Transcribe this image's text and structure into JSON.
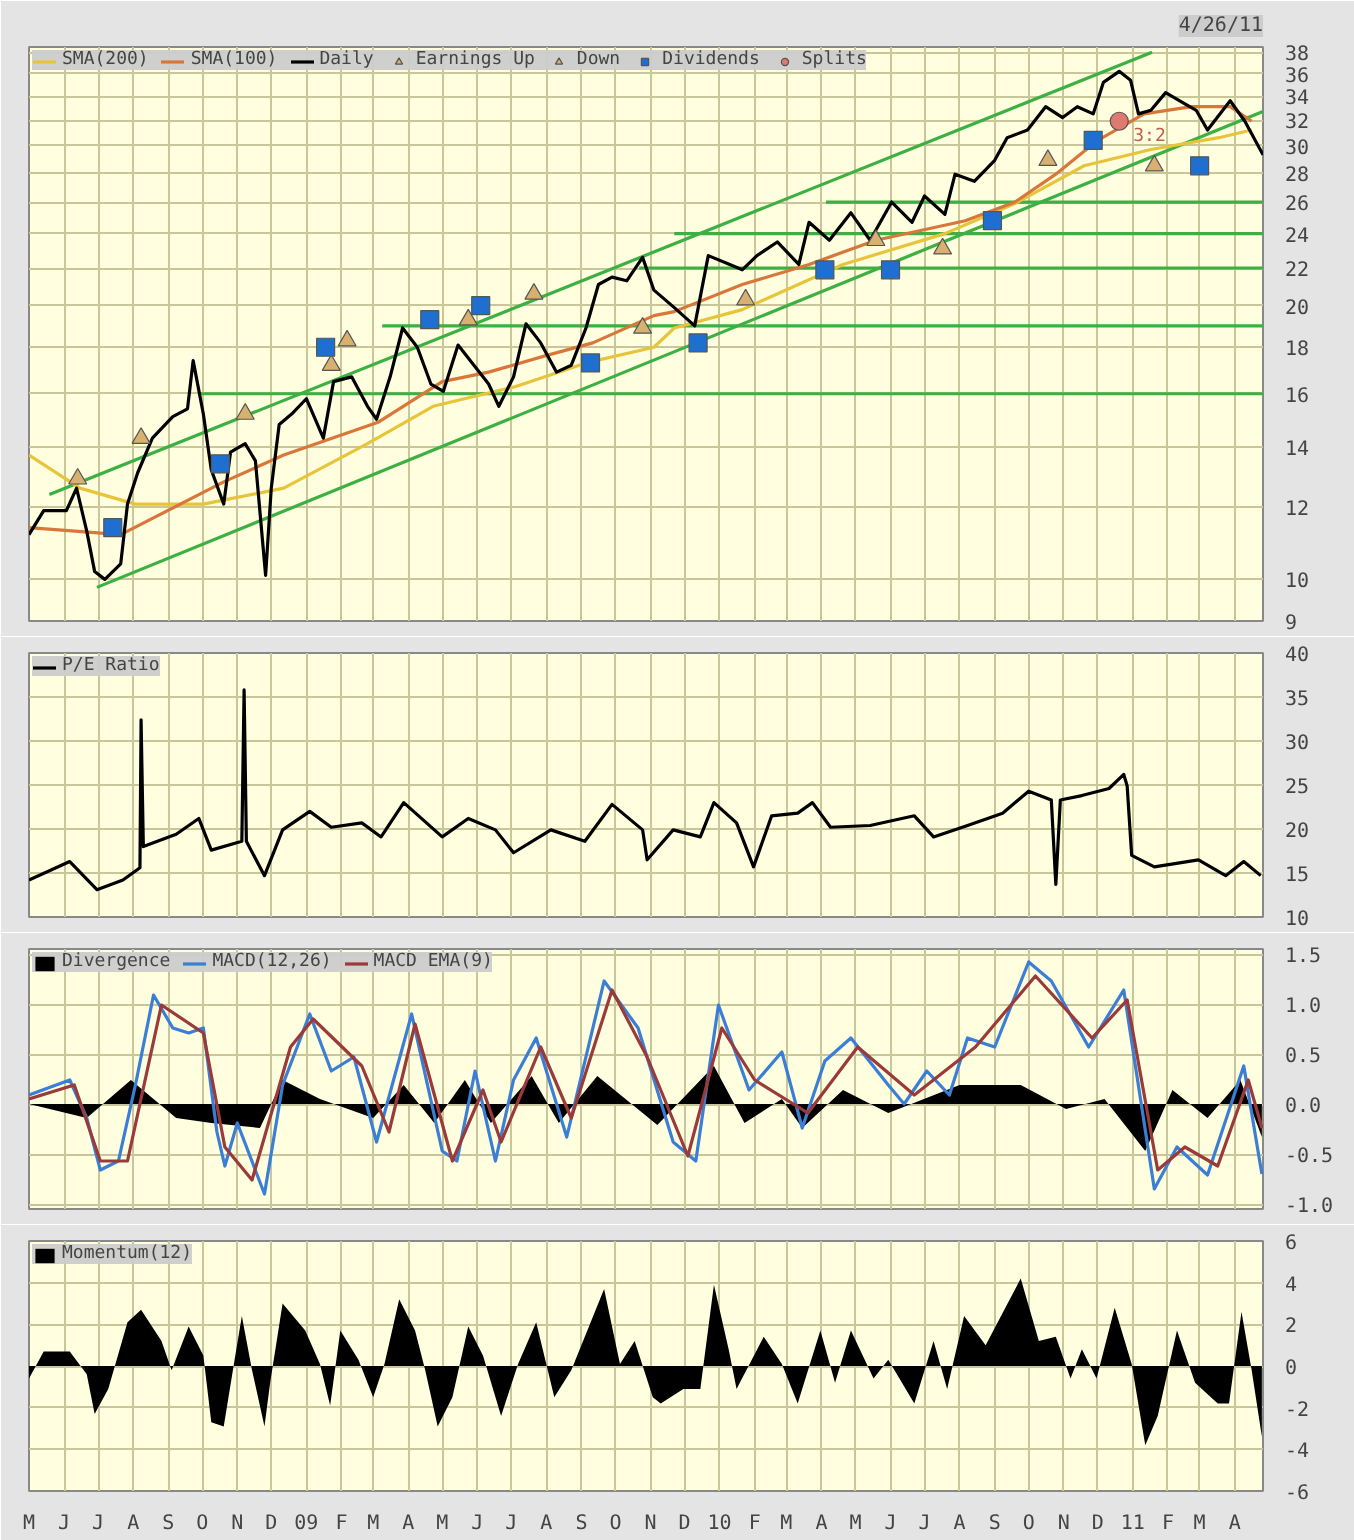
{
  "chart_data": [
    {
      "type": "line",
      "subtitle": "4/26/11",
      "log": true,
      "grid": true,
      "legend": "top",
      "tick_labels": "y",
      "xlim": [
        "2008-05-01",
        "2011-04-26"
      ],
      "ylim": [
        9,
        38.5
      ],
      "yticks": [
        9,
        10,
        12,
        14,
        16,
        18,
        20,
        22,
        24,
        26,
        28,
        30,
        32,
        34,
        36,
        38
      ],
      "xticks": [
        {
          "value": "2008-05-01",
          "label": null
        },
        {
          "value": "2008-06-01",
          "label": null
        },
        {
          "value": "2008-07-01",
          "label": null
        },
        {
          "value": "2008-08-01",
          "label": null
        },
        {
          "value": "2008-09-01",
          "label": null
        },
        {
          "value": "2008-10-01",
          "label": null
        },
        {
          "value": "2008-11-01",
          "label": null
        },
        {
          "value": "2008-12-01",
          "label": null
        },
        {
          "value": "2009-01-01",
          "label": null
        },
        {
          "value": "2009-02-01",
          "label": null
        },
        {
          "value": "2009-03-01",
          "label": null
        },
        {
          "value": "2009-04-01",
          "label": null
        },
        {
          "value": "2009-05-01",
          "label": null
        },
        {
          "value": "2009-06-01",
          "label": null
        },
        {
          "value": "2009-07-01",
          "label": null
        },
        {
          "value": "2009-08-01",
          "label": null
        },
        {
          "value": "2009-09-01",
          "label": null
        },
        {
          "value": "2009-10-01",
          "label": null
        },
        {
          "value": "2009-11-01",
          "label": null
        },
        {
          "value": "2009-12-01",
          "label": null
        },
        {
          "value": "2010-01-01",
          "label": null
        },
        {
          "value": "2010-02-01",
          "label": null
        },
        {
          "value": "2010-03-01",
          "label": null
        },
        {
          "value": "2010-04-01",
          "label": null
        },
        {
          "value": "2010-05-01",
          "label": null
        },
        {
          "value": "2010-06-01",
          "label": null
        },
        {
          "value": "2010-07-01",
          "label": null
        },
        {
          "value": "2010-08-01",
          "label": null
        },
        {
          "value": "2010-09-01",
          "label": null
        },
        {
          "value": "2010-10-01",
          "label": null
        },
        {
          "value": "2010-11-01",
          "label": null
        },
        {
          "value": "2010-12-01",
          "label": null
        },
        {
          "value": "2011-01-01",
          "label": null
        },
        {
          "value": "2011-02-01",
          "label": null
        },
        {
          "value": "2011-03-01",
          "label": null
        },
        {
          "value": "2011-04-01",
          "label": null
        }
      ],
      "annotations": [
        {
          "text": "3:2",
          "x": "2010-12-20",
          "y": 31.9
        }
      ],
      "series": [
        {
          "type": "line",
          "color": "#3cb043",
          "x": [
            "2008-06-30",
            "2011-04-26"
          ],
          "values": [
            9.8,
            32.7
          ]
        },
        {
          "type": "line",
          "color": "#3cb043",
          "x": [
            "2008-05-19",
            "2011-01-18"
          ],
          "values": [
            12.4,
            38
          ]
        },
        {
          "type": "line",
          "color": "#3cb043",
          "x": [
            "2008-09-28",
            "2011-04-26"
          ],
          "values": [
            16,
            16
          ]
        },
        {
          "type": "line",
          "color": "#3cb043",
          "x": [
            "2009-03-09",
            "2011-04-26"
          ],
          "values": [
            19,
            19
          ]
        },
        {
          "type": "line",
          "color": "#3cb043",
          "x": [
            "2009-10-22",
            "2011-04-26"
          ],
          "values": [
            22,
            22
          ]
        },
        {
          "type": "line",
          "color": "#3cb043",
          "x": [
            "2009-11-22",
            "2011-04-26"
          ],
          "values": [
            24,
            24
          ]
        },
        {
          "type": "line",
          "color": "#3cb043",
          "x": [
            "2010-04-05",
            "2011-04-26"
          ],
          "values": [
            26,
            26
          ]
        },
        {
          "type": "line",
          "name": "SMA(200)",
          "color": "#e8c43a",
          "x": [
            "2008-05-01",
            "2008-06-15",
            "2008-08-03",
            "2008-10-02",
            "2008-12-12",
            "2009-02-24",
            "2009-04-23",
            "2009-07-05",
            "2009-09-05",
            "2009-11-04",
            "2009-11-22",
            "2010-01-21",
            "2010-04-20",
            "2010-07-19",
            "2010-09-19",
            "2010-11-19",
            "2011-01-17",
            "2011-03-18",
            "2011-04-16"
          ],
          "values": [
            13.7,
            12.6,
            12.1,
            12.1,
            12.6,
            14.1,
            15.5,
            16.3,
            17.3,
            18.0,
            18.9,
            19.8,
            22.2,
            24.0,
            25.9,
            28.5,
            29.7,
            30.6,
            31.2
          ]
        },
        {
          "type": "line",
          "name": "SMA(100)",
          "color": "#d9773a",
          "x": [
            "2008-05-01",
            "2008-07-21",
            "2008-10-20",
            "2008-12-12",
            "2009-03-06",
            "2009-05-01",
            "2009-06-11",
            "2009-07-30",
            "2009-09-11",
            "2009-11-04",
            "2009-11-22",
            "2010-01-21",
            "2010-03-21",
            "2010-05-19",
            "2010-08-06",
            "2010-09-19",
            "2010-10-25",
            "2010-12-01",
            "2011-01-11",
            "2011-02-22",
            "2011-03-28",
            "2011-04-16"
          ],
          "values": [
            11.4,
            11.2,
            12.8,
            13.7,
            14.9,
            16.5,
            16.9,
            17.6,
            18.2,
            19.5,
            19.7,
            21.1,
            22.2,
            23.6,
            24.8,
            26.0,
            27.9,
            30.4,
            32.5,
            33.1,
            33.1,
            31.9
          ]
        },
        {
          "type": "line",
          "name": "Daily",
          "color": "#000000",
          "x": [
            "2008-05-01",
            "2008-05-14",
            "2008-06-03",
            "2008-06-12",
            "2008-06-21",
            "2008-06-28",
            "2008-07-07",
            "2008-07-21",
            "2008-07-27",
            "2008-08-05",
            "2008-08-18",
            "2008-09-05",
            "2008-09-18",
            "2008-09-23",
            "2008-10-02",
            "2008-10-09",
            "2008-10-20",
            "2008-10-26",
            "2008-11-08",
            "2008-11-17",
            "2008-11-26",
            "2008-12-01",
            "2008-12-08",
            "2008-12-19",
            "2009-01-01",
            "2009-01-16",
            "2009-01-25",
            "2009-02-10",
            "2009-02-24",
            "2009-03-04",
            "2009-03-16",
            "2009-03-27",
            "2009-04-09",
            "2009-04-21",
            "2009-05-02",
            "2009-05-15",
            "2009-05-29",
            "2009-06-11",
            "2009-06-20",
            "2009-07-03",
            "2009-07-14",
            "2009-07-27",
            "2009-08-10",
            "2009-08-23",
            "2009-09-05",
            "2009-09-16",
            "2009-09-28",
            "2009-10-11",
            "2009-10-25",
            "2009-11-04",
            "2009-11-22",
            "2009-12-10",
            "2009-12-22",
            "2010-01-10",
            "2010-01-21",
            "2010-02-03",
            "2010-02-21",
            "2010-03-12",
            "2010-03-21",
            "2010-04-08",
            "2010-04-27",
            "2010-05-14",
            "2010-06-02",
            "2010-06-20",
            "2010-07-01",
            "2010-07-19",
            "2010-07-28",
            "2010-08-14",
            "2010-09-01",
            "2010-09-12",
            "2010-09-30",
            "2010-10-16",
            "2010-10-31",
            "2010-11-13",
            "2010-11-27",
            "2010-12-06",
            "2010-12-20",
            "2010-12-30",
            "2011-01-06",
            "2011-01-17",
            "2011-01-30",
            "2011-02-13",
            "2011-02-26",
            "2011-03-08",
            "2011-03-28",
            "2011-04-10",
            "2011-04-26"
          ],
          "values": [
            11.2,
            11.9,
            11.9,
            12.6,
            11.3,
            10.2,
            10.0,
            10.4,
            12.1,
            13.1,
            14.3,
            15.1,
            15.4,
            17.4,
            15.2,
            13.2,
            12.1,
            13.8,
            14.1,
            13.5,
            10.1,
            12.6,
            14.8,
            15.2,
            15.8,
            14.3,
            16.5,
            16.7,
            15.5,
            15.0,
            16.7,
            18.9,
            18.0,
            16.4,
            16.1,
            18.1,
            17.2,
            16.4,
            15.5,
            16.7,
            19.1,
            18.2,
            16.9,
            17.2,
            18.9,
            21.1,
            21.5,
            21.3,
            22.6,
            20.8,
            19.9,
            19.0,
            22.7,
            22.2,
            21.9,
            22.7,
            23.5,
            22.2,
            24.7,
            23.6,
            25.3,
            23.6,
            26.0,
            24.7,
            26.4,
            25.2,
            27.9,
            27.4,
            28.9,
            30.6,
            31.2,
            33.1,
            32.2,
            33.1,
            32.5,
            35.2,
            36.2,
            35.4,
            32.5,
            32.8,
            34.3,
            33.5,
            32.8,
            31.2,
            33.6,
            31.9,
            29.3
          ]
        },
        {
          "type": "scatter",
          "name": "Earnings Up",
          "marker": "triangle",
          "color": "#d8b070",
          "x": [
            "2008-06-13",
            "2008-08-08",
            "2008-11-08",
            "2009-02-06",
            "2009-05-24",
            "2009-07-21",
            "2009-10-25",
            "2010-01-24",
            "2010-05-19",
            "2010-07-17",
            "2010-10-18",
            "2011-01-20"
          ],
          "values": [
            12.9,
            14.3,
            15.2,
            18.3,
            19.3,
            20.6,
            18.9,
            20.3,
            23.6,
            23.1,
            28.9,
            28.5
          ]
        },
        {
          "type": "scatter",
          "name": "Down",
          "marker": "triangle",
          "color": "#d8b070",
          "x": [
            "2009-01-23"
          ],
          "values": [
            17.2
          ]
        },
        {
          "type": "scatter",
          "name": "Dividends",
          "marker": "square",
          "color": "#1f6fd0",
          "x": [
            "2008-07-14",
            "2008-10-17",
            "2009-01-18",
            "2009-04-20",
            "2009-06-04",
            "2009-09-09",
            "2009-12-13",
            "2010-04-04",
            "2010-06-01",
            "2010-08-30",
            "2010-11-27",
            "2011-03-01"
          ],
          "values": [
            11.4,
            13.4,
            18.0,
            19.3,
            20.0,
            17.3,
            18.2,
            21.9,
            21.9,
            24.8,
            30.4,
            28.5
          ]
        },
        {
          "type": "scatter",
          "name": "Splits",
          "marker": "circle",
          "color": "#e07a70",
          "x": [
            "2010-12-20"
          ],
          "values": [
            31.9
          ]
        }
      ]
    },
    {
      "type": "line",
      "grid": true,
      "legend": "top",
      "tick_labels": "y",
      "xlim": [
        "2008-05-01",
        "2011-04-26"
      ],
      "ylim": [
        10,
        40
      ],
      "yticks": [
        10,
        15,
        20,
        25,
        30,
        35,
        40
      ],
      "xticks": [
        {
          "value": "2008-05-01",
          "label": null
        },
        {
          "value": "2008-06-01",
          "label": null
        },
        {
          "value": "2008-07-01",
          "label": null
        },
        {
          "value": "2008-08-01",
          "label": null
        },
        {
          "value": "2008-09-01",
          "label": null
        },
        {
          "value": "2008-10-01",
          "label": null
        },
        {
          "value": "2008-11-01",
          "label": null
        },
        {
          "value": "2008-12-01",
          "label": null
        },
        {
          "value": "2009-01-01",
          "label": null
        },
        {
          "value": "2009-02-01",
          "label": null
        },
        {
          "value": "2009-03-01",
          "label": null
        },
        {
          "value": "2009-04-01",
          "label": null
        },
        {
          "value": "2009-05-01",
          "label": null
        },
        {
          "value": "2009-06-01",
          "label": null
        },
        {
          "value": "2009-07-01",
          "label": null
        },
        {
          "value": "2009-08-01",
          "label": null
        },
        {
          "value": "2009-09-01",
          "label": null
        },
        {
          "value": "2009-10-01",
          "label": null
        },
        {
          "value": "2009-11-01",
          "label": null
        },
        {
          "value": "2009-12-01",
          "label": null
        },
        {
          "value": "2010-01-01",
          "label": null
        },
        {
          "value": "2010-02-01",
          "label": null
        },
        {
          "value": "2010-03-01",
          "label": null
        },
        {
          "value": "2010-04-01",
          "label": null
        },
        {
          "value": "2010-05-01",
          "label": null
        },
        {
          "value": "2010-06-01",
          "label": null
        },
        {
          "value": "2010-07-01",
          "label": null
        },
        {
          "value": "2010-08-01",
          "label": null
        },
        {
          "value": "2010-09-01",
          "label": null
        },
        {
          "value": "2010-10-01",
          "label": null
        },
        {
          "value": "2010-11-01",
          "label": null
        },
        {
          "value": "2010-12-01",
          "label": null
        },
        {
          "value": "2011-01-01",
          "label": null
        },
        {
          "value": "2011-02-01",
          "label": null
        },
        {
          "value": "2011-03-01",
          "label": null
        },
        {
          "value": "2011-04-01",
          "label": null
        }
      ],
      "series": [
        {
          "name": "P/E Ratio",
          "color": "#000000",
          "x": [
            "2008-05-01",
            "2008-06-06",
            "2008-06-30",
            "2008-07-23",
            "2008-08-07",
            "2008-08-08",
            "2008-08-10",
            "2008-09-08",
            "2008-09-28",
            "2008-10-09",
            "2008-11-05",
            "2008-11-07",
            "2008-11-09",
            "2008-11-25",
            "2008-12-11",
            "2009-01-04",
            "2009-01-23",
            "2009-02-19",
            "2009-03-08",
            "2009-03-28",
            "2009-05-01",
            "2009-05-24",
            "2009-06-17",
            "2009-07-03",
            "2009-08-05",
            "2009-09-04",
            "2009-09-28",
            "2009-10-25",
            "2009-10-29",
            "2009-11-21",
            "2009-12-15",
            "2009-12-27",
            "2010-01-16",
            "2010-01-31",
            "2010-02-16",
            "2010-03-11",
            "2010-03-24",
            "2010-04-09",
            "2010-05-14",
            "2010-06-22",
            "2010-07-09",
            "2010-08-08",
            "2010-09-08",
            "2010-10-01",
            "2010-10-21",
            "2010-10-25",
            "2010-10-29",
            "2010-11-17",
            "2010-12-11",
            "2010-12-24",
            "2010-12-27",
            "2010-12-31",
            "2011-01-20",
            "2011-02-28",
            "2011-03-24",
            "2011-04-09",
            "2011-04-24"
          ],
          "values": [
            14.2,
            16.3,
            13.1,
            14.2,
            15.6,
            32.4,
            18.0,
            19.4,
            21.2,
            17.6,
            18.6,
            35.8,
            18.6,
            14.7,
            19.9,
            22.0,
            20.2,
            20.7,
            19.1,
            23.0,
            19.1,
            21.2,
            19.9,
            17.3,
            19.9,
            18.6,
            22.8,
            19.9,
            16.5,
            19.9,
            19.1,
            23.0,
            20.7,
            15.7,
            21.5,
            21.8,
            23.0,
            20.2,
            20.4,
            21.5,
            19.1,
            20.4,
            21.8,
            24.3,
            23.3,
            13.7,
            23.3,
            23.8,
            24.6,
            26.2,
            24.9,
            17.0,
            15.7,
            16.5,
            14.7,
            16.3,
            14.7
          ]
        }
      ]
    },
    {
      "type": "line",
      "grid": true,
      "legend": "top",
      "tick_labels": "y",
      "xlim": [
        "2008-05-01",
        "2011-04-26"
      ],
      "ylim": [
        -1.05,
        1.55
      ],
      "yticks": [
        {
          "value": -1,
          "label": "-1.0"
        },
        -0.5,
        {
          "value": 0,
          "label": "0.0"
        },
        0.5,
        {
          "value": 1,
          "label": "1.0"
        },
        1.5
      ],
      "xticks": [
        {
          "value": "2008-05-01",
          "label": null
        },
        {
          "value": "2008-06-01",
          "label": null
        },
        {
          "value": "2008-07-01",
          "label": null
        },
        {
          "value": "2008-08-01",
          "label": null
        },
        {
          "value": "2008-09-01",
          "label": null
        },
        {
          "value": "2008-10-01",
          "label": null
        },
        {
          "value": "2008-11-01",
          "label": null
        },
        {
          "value": "2008-12-01",
          "label": null
        },
        {
          "value": "2009-01-01",
          "label": null
        },
        {
          "value": "2009-02-01",
          "label": null
        },
        {
          "value": "2009-03-01",
          "label": null
        },
        {
          "value": "2009-04-01",
          "label": null
        },
        {
          "value": "2009-05-01",
          "label": null
        },
        {
          "value": "2009-06-01",
          "label": null
        },
        {
          "value": "2009-07-01",
          "label": null
        },
        {
          "value": "2009-08-01",
          "label": null
        },
        {
          "value": "2009-09-01",
          "label": null
        },
        {
          "value": "2009-10-01",
          "label": null
        },
        {
          "value": "2009-11-01",
          "label": null
        },
        {
          "value": "2009-12-01",
          "label": null
        },
        {
          "value": "2010-01-01",
          "label": null
        },
        {
          "value": "2010-02-01",
          "label": null
        },
        {
          "value": "2010-03-01",
          "label": null
        },
        {
          "value": "2010-04-01",
          "label": null
        },
        {
          "value": "2010-05-01",
          "label": null
        },
        {
          "value": "2010-06-01",
          "label": null
        },
        {
          "value": "2010-07-01",
          "label": null
        },
        {
          "value": "2010-08-01",
          "label": null
        },
        {
          "value": "2010-09-01",
          "label": null
        },
        {
          "value": "2010-10-01",
          "label": null
        },
        {
          "value": "2010-11-01",
          "label": null
        },
        {
          "value": "2010-12-01",
          "label": null
        },
        {
          "value": "2011-01-01",
          "label": null
        },
        {
          "value": "2011-02-01",
          "label": null
        },
        {
          "value": "2011-03-01",
          "label": null
        },
        {
          "value": "2011-04-01",
          "label": null
        }
      ],
      "series": [
        {
          "name": "Divergence",
          "type": "area",
          "color": "#000000",
          "x": [
            "2008-05-01",
            "2008-06-21",
            "2008-07-30",
            "2008-09-08",
            "2008-10-09",
            "2008-11-21",
            "2008-12-11",
            "2009-01-13",
            "2009-03-01",
            "2009-03-28",
            "2009-04-24",
            "2009-05-21",
            "2009-06-13",
            "2009-07-19",
            "2009-08-12",
            "2009-09-15",
            "2009-11-07",
            "2009-12-27",
            "2010-01-23",
            "2010-02-25",
            "2010-03-15",
            "2010-04-20",
            "2010-05-30",
            "2010-08-01",
            "2010-09-24",
            "2010-11-03",
            "2010-12-07",
            "2011-01-12",
            "2011-02-05",
            "2011-03-08",
            "2011-04-06",
            "2011-04-25"
          ],
          "values": [
            0,
            -0.14,
            0.24,
            -0.14,
            -0.19,
            -0.24,
            0.24,
            0.05,
            -0.14,
            0.19,
            -0.19,
            0.24,
            -0.19,
            0.28,
            -0.19,
            0.28,
            -0.21,
            0.38,
            -0.19,
            0.05,
            -0.24,
            0.14,
            -0.09,
            0.19,
            0.19,
            -0.05,
            0.05,
            -0.47,
            0.14,
            -0.14,
            0.24,
            -0.33
          ]
        },
        {
          "name": "MACD(12,26)",
          "color": "#3a7fd5",
          "x": [
            "2008-05-01",
            "2008-06-06",
            "2008-06-21",
            "2008-07-03",
            "2008-07-19",
            "2008-08-03",
            "2008-08-19",
            "2008-09-05",
            "2008-09-19",
            "2008-10-02",
            "2008-10-14",
            "2008-10-21",
            "2008-11-01",
            "2008-11-25",
            "2008-12-11",
            "2009-01-04",
            "2009-01-23",
            "2009-02-12",
            "2009-03-04",
            "2009-04-04",
            "2009-05-01",
            "2009-05-14",
            "2009-05-30",
            "2009-06-17",
            "2009-07-03",
            "2009-07-23",
            "2009-08-19",
            "2009-09-21",
            "2009-10-21",
            "2009-11-21",
            "2009-12-11",
            "2009-12-31",
            "2010-01-27",
            "2010-02-25",
            "2010-03-15",
            "2010-04-04",
            "2010-04-27",
            "2010-05-30",
            "2010-06-13",
            "2010-07-03",
            "2010-07-23",
            "2010-08-08",
            "2010-09-01",
            "2010-10-01",
            "2010-10-21",
            "2010-11-23",
            "2010-12-24",
            "2011-01-20",
            "2011-02-09",
            "2011-03-08",
            "2011-04-09",
            "2011-04-25"
          ],
          "values": [
            0.09,
            0.24,
            -0.14,
            -0.66,
            -0.57,
            0.19,
            1.09,
            0.76,
            0.71,
            0.76,
            -0.28,
            -0.62,
            -0.19,
            -0.9,
            0.19,
            0.9,
            0.33,
            0.47,
            -0.38,
            0.9,
            -0.47,
            -0.57,
            0.33,
            -0.57,
            0.24,
            0.66,
            -0.33,
            1.23,
            0.76,
            -0.38,
            -0.57,
            0.99,
            0.14,
            0.52,
            -0.24,
            0.43,
            0.66,
            0.19,
            0.0,
            0.33,
            0.09,
            0.66,
            0.57,
            1.42,
            1.23,
            0.57,
            1.14,
            -0.85,
            -0.43,
            -0.71,
            0.38,
            -0.7
          ]
        },
        {
          "name": "MACD EMA(9)",
          "color": "#9a3a3a",
          "x": [
            "2008-05-01",
            "2008-06-10",
            "2008-07-03",
            "2008-07-27",
            "2008-08-26",
            "2008-10-02",
            "2008-10-21",
            "2008-11-14",
            "2008-12-18",
            "2009-01-07",
            "2009-02-19",
            "2009-03-15",
            "2009-04-07",
            "2009-05-10",
            "2009-06-06",
            "2009-06-22",
            "2009-07-27",
            "2009-08-23",
            "2009-09-28",
            "2009-10-29",
            "2009-12-04",
            "2010-01-03",
            "2010-02-01",
            "2010-03-20",
            "2010-05-03",
            "2010-06-22",
            "2010-08-15",
            "2010-10-07",
            "2010-11-26",
            "2010-12-27",
            "2011-01-23",
            "2011-02-16",
            "2011-03-17",
            "2011-04-13",
            "2011-04-25"
          ],
          "values": [
            0.05,
            0.19,
            -0.57,
            -0.57,
            0.99,
            0.71,
            -0.43,
            -0.76,
            0.57,
            0.85,
            0.38,
            -0.28,
            0.8,
            -0.57,
            0.14,
            -0.38,
            0.57,
            -0.14,
            1.14,
            0.47,
            -0.52,
            0.76,
            0.24,
            -0.09,
            0.57,
            0.09,
            0.57,
            1.28,
            0.66,
            1.04,
            -0.66,
            -0.43,
            -0.62,
            0.24,
            -0.24
          ]
        }
      ]
    },
    {
      "type": "area",
      "grid": true,
      "legend": "top",
      "xlim": [
        "2008-05-01",
        "2011-04-26"
      ],
      "ylim": [
        -6,
        6
      ],
      "yticks": [
        -6,
        -4,
        -2,
        0,
        2,
        4,
        6
      ],
      "xticks": [
        {
          "value": "2008-05-01",
          "label": "M"
        },
        {
          "value": "2008-06-01",
          "label": "J"
        },
        {
          "value": "2008-07-01",
          "label": "J"
        },
        {
          "value": "2008-08-01",
          "label": "A"
        },
        {
          "value": "2008-09-01",
          "label": "S"
        },
        {
          "value": "2008-10-01",
          "label": "O"
        },
        {
          "value": "2008-11-01",
          "label": "N"
        },
        {
          "value": "2008-12-01",
          "label": "D"
        },
        {
          "value": "2009-01-01",
          "label": "09"
        },
        {
          "value": "2009-02-01",
          "label": "F"
        },
        {
          "value": "2009-03-01",
          "label": "M"
        },
        {
          "value": "2009-04-01",
          "label": "A"
        },
        {
          "value": "2009-05-01",
          "label": "M"
        },
        {
          "value": "2009-06-01",
          "label": "J"
        },
        {
          "value": "2009-07-01",
          "label": "J"
        },
        {
          "value": "2009-08-01",
          "label": "A"
        },
        {
          "value": "2009-09-01",
          "label": "S"
        },
        {
          "value": "2009-10-01",
          "label": "O"
        },
        {
          "value": "2009-11-01",
          "label": "N"
        },
        {
          "value": "2009-12-01",
          "label": "D"
        },
        {
          "value": "2010-01-01",
          "label": "10"
        },
        {
          "value": "2010-02-01",
          "label": "F"
        },
        {
          "value": "2010-03-01",
          "label": "M"
        },
        {
          "value": "2010-04-01",
          "label": "A"
        },
        {
          "value": "2010-05-01",
          "label": "M"
        },
        {
          "value": "2010-06-01",
          "label": "J"
        },
        {
          "value": "2010-07-01",
          "label": "J"
        },
        {
          "value": "2010-08-01",
          "label": "A"
        },
        {
          "value": "2010-09-01",
          "label": "S"
        },
        {
          "value": "2010-10-01",
          "label": "O"
        },
        {
          "value": "2010-11-01",
          "label": "N"
        },
        {
          "value": "2010-12-01",
          "label": "D"
        },
        {
          "value": "2011-01-01",
          "label": "11"
        },
        {
          "value": "2011-02-01",
          "label": "F"
        },
        {
          "value": "2011-03-01",
          "label": "M"
        },
        {
          "value": "2011-04-01",
          "label": "A"
        }
      ],
      "series": [
        {
          "name": "Momentum(12)",
          "color": "#000000",
          "x": [
            "2008-05-01",
            "2008-05-14",
            "2008-06-06",
            "2008-06-21",
            "2008-06-28",
            "2008-07-10",
            "2008-07-27",
            "2008-08-08",
            "2008-08-26",
            "2008-09-04",
            "2008-09-19",
            "2008-10-02",
            "2008-10-09",
            "2008-10-20",
            "2008-10-29",
            "2008-11-05",
            "2008-11-14",
            "2008-11-25",
            "2008-11-30",
            "2008-12-11",
            "2008-12-31",
            "2009-01-13",
            "2009-01-22",
            "2009-01-31",
            "2009-02-16",
            "2009-03-01",
            "2009-03-11",
            "2009-03-24",
            "2009-04-07",
            "2009-04-16",
            "2009-04-27",
            "2009-05-10",
            "2009-05-24",
            "2009-06-06",
            "2009-06-22",
            "2009-07-07",
            "2009-07-23",
            "2009-08-08",
            "2009-08-23",
            "2009-09-21",
            "2009-10-05",
            "2009-10-18",
            "2009-11-03",
            "2009-11-10",
            "2009-11-30",
            "2009-12-15",
            "2009-12-27",
            "2010-01-09",
            "2010-01-16",
            "2010-02-09",
            "2010-02-25",
            "2010-03-11",
            "2010-03-31",
            "2010-04-13",
            "2010-04-27",
            "2010-05-17",
            "2010-05-30",
            "2010-06-22",
            "2010-07-09",
            "2010-07-21",
            "2010-08-05",
            "2010-08-24",
            "2010-09-24",
            "2010-10-10",
            "2010-10-25",
            "2010-11-07",
            "2010-11-17",
            "2010-11-30",
            "2010-12-16",
            "2010-12-31",
            "2011-01-12",
            "2011-01-23",
            "2011-02-09",
            "2011-02-25",
            "2011-03-17",
            "2011-03-27",
            "2011-04-07",
            "2011-04-16",
            "2011-04-25"
          ],
          "values": [
            -0.6,
            0.7,
            0.7,
            -0.4,
            -2.3,
            -1.1,
            2.1,
            2.7,
            1.2,
            -0.2,
            1.9,
            0.5,
            -2.7,
            -2.9,
            0.1,
            2.4,
            -0.2,
            -2.9,
            -0.8,
            3.0,
            1.7,
            0.1,
            -1.9,
            1.7,
            0.3,
            -1.5,
            0.1,
            3.2,
            1.7,
            -0.2,
            -2.9,
            -1.5,
            1.9,
            0.5,
            -2.4,
            0.1,
            2.1,
            -1.5,
            -0.2,
            3.7,
            0.1,
            1.2,
            -1.5,
            -1.8,
            -1.1,
            -1.1,
            3.9,
            0.8,
            -1.1,
            1.4,
            0.1,
            -1.8,
            1.7,
            -0.8,
            1.7,
            -0.6,
            0.3,
            -1.8,
            1.2,
            -1.1,
            2.4,
            1.0,
            4.2,
            1.2,
            1.4,
            -0.6,
            0.8,
            -0.6,
            2.8,
            0.1,
            -3.8,
            -2.4,
            1.7,
            -0.8,
            -1.8,
            -1.8,
            2.6,
            -0.2,
            -3.4
          ]
        }
      ]
    }
  ]
}
